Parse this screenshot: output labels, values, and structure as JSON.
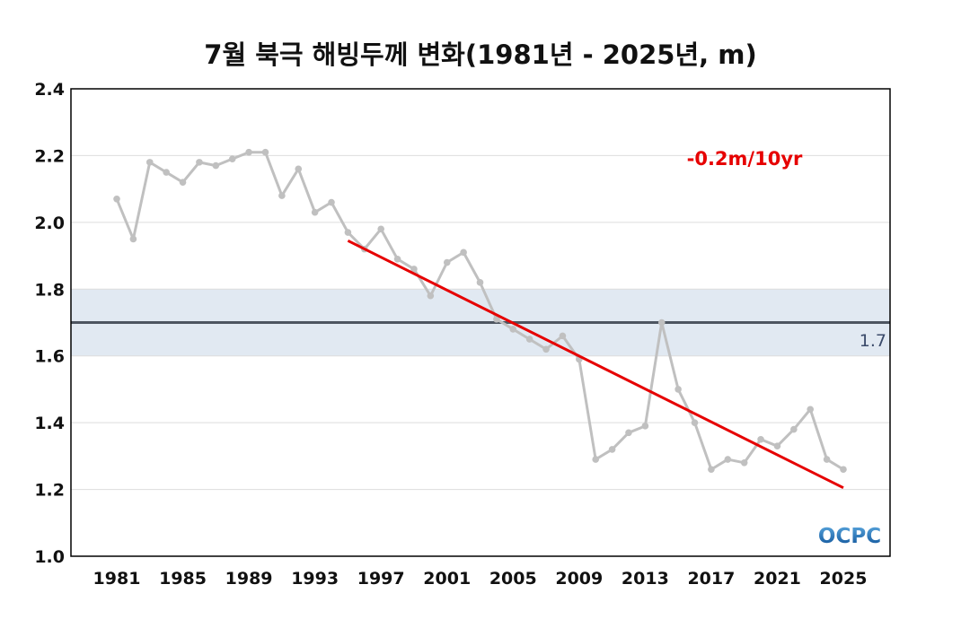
{
  "colors": {
    "series": "#c0c0c0",
    "trend": "#e60000",
    "reference_band": "#e1e9f2",
    "reference_line": "#4d5560",
    "reference_label": "#3a4a6a",
    "grid": "#dddddd",
    "axis": "#000000",
    "logo_top": "#5aa6dd",
    "logo_bottom": "#0b4f96"
  },
  "logo": {
    "text": "OCPC"
  },
  "chart_data": {
    "type": "line",
    "title": "7월 북극 해빙두께 변화(1981년 - 2025년, m)",
    "xlabel": "",
    "ylabel": "",
    "xlim": [
      1981,
      2025
    ],
    "ylim": [
      1.0,
      2.4
    ],
    "grid": true,
    "x": [
      1981,
      1982,
      1983,
      1984,
      1985,
      1986,
      1987,
      1988,
      1989,
      1990,
      1991,
      1992,
      1993,
      1994,
      1995,
      1996,
      1997,
      1998,
      1999,
      2000,
      2001,
      2002,
      2003,
      2004,
      2005,
      2006,
      2007,
      2008,
      2009,
      2010,
      2011,
      2012,
      2013,
      2014,
      2015,
      2016,
      2017,
      2018,
      2019,
      2020,
      2021,
      2022,
      2023,
      2024,
      2025
    ],
    "x_tick_labels": [
      "1981",
      "1985",
      "1989",
      "1993",
      "1997",
      "2001",
      "2005",
      "2009",
      "2013",
      "2017",
      "2021",
      "2025"
    ],
    "y_tick_labels": [
      "1.0",
      "1.2",
      "1.4",
      "1.6",
      "1.8",
      "2.0",
      "2.2",
      "2.4"
    ],
    "series": [
      {
        "values": [
          2.07,
          1.95,
          2.18,
          2.15,
          2.12,
          2.18,
          2.17,
          2.19,
          2.21,
          2.21,
          2.08,
          2.16,
          2.03,
          2.06,
          1.97,
          1.92,
          1.98,
          1.89,
          1.86,
          1.78,
          1.88,
          1.91,
          1.82,
          1.71,
          1.68,
          1.65,
          1.62,
          1.66,
          1.59,
          1.29,
          1.32,
          1.37,
          1.39,
          1.7,
          1.5,
          1.4,
          1.26,
          1.29,
          1.28,
          1.35,
          1.33,
          1.38,
          1.44,
          1.29,
          1.26
        ]
      }
    ],
    "trend": {
      "x_start": 1995,
      "y_start": 1.945,
      "x_end": 2025,
      "y_end": 1.205,
      "label": "-0.2m/10yr"
    },
    "reference": {
      "value": 1.7,
      "label": "1.7",
      "band": [
        1.6,
        1.8
      ]
    }
  }
}
